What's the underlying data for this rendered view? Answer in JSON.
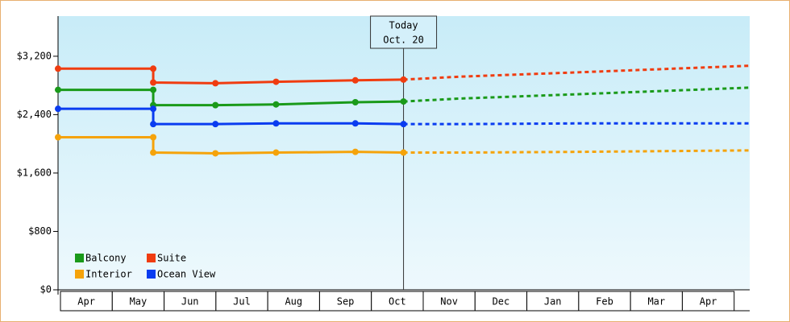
{
  "chart_data": {
    "type": "line",
    "categories": [
      "Apr",
      "May",
      "Jun",
      "Jul",
      "Aug",
      "Sep",
      "Oct",
      "Nov",
      "Dec",
      "Jan",
      "Feb",
      "Mar",
      "Apr"
    ],
    "xlim": [
      0,
      13.3
    ],
    "ylim": [
      0,
      3750
    ],
    "yticks": [
      {
        "value": 0,
        "label": "$0"
      },
      {
        "value": 800,
        "label": "$800"
      },
      {
        "value": 1600,
        "label": "$1,600"
      },
      {
        "value": 2400,
        "label": "$2,400"
      },
      {
        "value": 3200,
        "label": "$3,200"
      }
    ],
    "today": {
      "x": 6.62,
      "label": "Today",
      "date": "Oct. 20"
    },
    "series": [
      {
        "name": "Balcony",
        "color": "#1a9a1a",
        "x": [
          0,
          1.79,
          1.79,
          2.99,
          4.16,
          5.69,
          6.62
        ],
        "values": [
          2740,
          2740,
          2530,
          2530,
          2540,
          2570,
          2580
        ],
        "forecast": {
          "x": [
            6.62,
            7.7,
            10,
            13.3
          ],
          "values": [
            2580,
            2620,
            2680,
            2770
          ]
        }
      },
      {
        "name": "Suite",
        "color": "#f03c10",
        "x": [
          0,
          1.79,
          1.79,
          2.99,
          4.16,
          5.69,
          6.62
        ],
        "values": [
          3030,
          3030,
          2840,
          2830,
          2850,
          2870,
          2880
        ],
        "forecast": {
          "x": [
            6.62,
            7.7,
            10,
            13.3
          ],
          "values": [
            2880,
            2920,
            2980,
            3070
          ]
        }
      },
      {
        "name": "Interior",
        "color": "#f5a30a",
        "x": [
          0,
          1.79,
          1.79,
          2.99,
          4.16,
          5.69,
          6.62
        ],
        "values": [
          2090,
          2090,
          1880,
          1870,
          1880,
          1890,
          1880
        ],
        "forecast": {
          "x": [
            6.62,
            7.7,
            10,
            13.3
          ],
          "values": [
            1880,
            1880,
            1890,
            1910
          ]
        }
      },
      {
        "name": "Ocean View",
        "color": "#0a3cf0",
        "x": [
          0,
          1.79,
          1.79,
          2.99,
          4.16,
          5.69,
          6.62
        ],
        "values": [
          2480,
          2480,
          2270,
          2270,
          2280,
          2280,
          2270
        ],
        "forecast": {
          "x": [
            6.62,
            7.7,
            10,
            13.3
          ],
          "values": [
            2270,
            2270,
            2280,
            2280
          ]
        }
      }
    ]
  }
}
